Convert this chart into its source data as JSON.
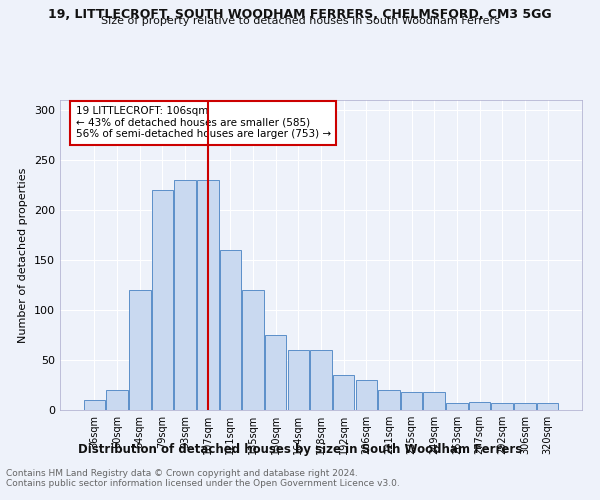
{
  "title1": "19, LITTLECROFT, SOUTH WOODHAM FERRERS, CHELMSFORD, CM3 5GG",
  "title2": "Size of property relative to detached houses in South Woodham Ferrers",
  "xlabel": "Distribution of detached houses by size in South Woodham Ferrers",
  "ylabel": "Number of detached properties",
  "footnote1": "Contains HM Land Registry data © Crown copyright and database right 2024.",
  "footnote2": "Contains public sector information licensed under the Open Government Licence v3.0.",
  "categories": [
    "36sqm",
    "50sqm",
    "64sqm",
    "79sqm",
    "93sqm",
    "107sqm",
    "121sqm",
    "135sqm",
    "150sqm",
    "164sqm",
    "178sqm",
    "192sqm",
    "206sqm",
    "221sqm",
    "235sqm",
    "249sqm",
    "263sqm",
    "277sqm",
    "292sqm",
    "306sqm",
    "320sqm"
  ],
  "values": [
    10,
    20,
    120,
    220,
    230,
    230,
    160,
    120,
    75,
    60,
    60,
    35,
    30,
    20,
    18,
    18,
    7,
    8,
    7,
    7,
    7
  ],
  "bar_color": "#c9d9f0",
  "bar_edge_color": "#5b8fc9",
  "vline_x": 5,
  "vline_color": "#cc0000",
  "annotation_box_text": "19 LITTLECROFT: 106sqm\n← 43% of detached houses are smaller (585)\n56% of semi-detached houses are larger (753) →",
  "box_edge_color": "#cc0000",
  "bg_color": "#eef2fa",
  "grid_color": "#ffffff",
  "ylim": [
    0,
    310
  ],
  "yticks": [
    0,
    50,
    100,
    150,
    200,
    250,
    300
  ]
}
